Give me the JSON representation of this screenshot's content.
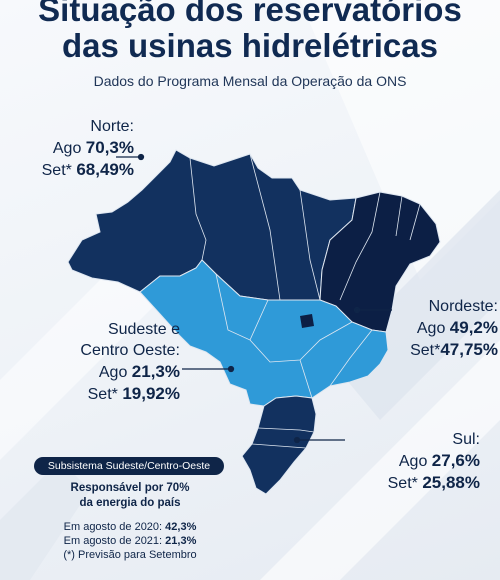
{
  "header": {
    "title_line1": "Situação dos reservatórios",
    "title_line2": "das usinas hidrelétricas",
    "subtitle": "Dados do Programa Mensal da Operação da ONS"
  },
  "regions": {
    "norte": {
      "name": "Norte:",
      "ago_label": "Ago",
      "ago_value": "70,3%",
      "set_label": "Set*",
      "set_value": "68,49%"
    },
    "nordeste": {
      "name": "Nordeste:",
      "ago_label": "Ago",
      "ago_value": "49,2%",
      "set_label": "Set*",
      "set_value": "47,75%"
    },
    "sudeste": {
      "name_line1": "Sudeste e",
      "name_line2": "Centro Oeste:",
      "ago_label": "Ago",
      "ago_value": "21,3%",
      "set_label": "Set*",
      "set_value": "19,92%"
    },
    "sul": {
      "name": "Sul:",
      "ago_label": "Ago",
      "ago_value": "27,6%",
      "set_label": "Set*",
      "set_value": "25,88%"
    }
  },
  "info_box": {
    "badge": "Subsistema Sudeste/Centro-Oeste",
    "headline_line1": "Responsável por 70%",
    "headline_line2": "da energia do país",
    "line_2020_text": "Em agosto de 2020: ",
    "line_2020_value": "42,3%",
    "line_2021_text": "Em agosto de 2021: ",
    "line_2021_value": "21,3%",
    "footnote": "(*) Previsão para Setembro"
  },
  "colors": {
    "north": "#12315f",
    "northeast": "#0c1f45",
    "southeast": "#2f9ad8",
    "south": "#12315f",
    "text": "#0f2548"
  }
}
